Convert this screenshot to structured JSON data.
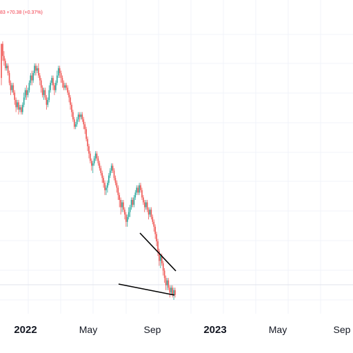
{
  "header": {
    "change_text": "83  +70.38 (+0.37%)"
  },
  "colors": {
    "up": "#26a69a",
    "down": "#ef5350",
    "grid": "#f0f3fa",
    "trendline": "#000000",
    "axis_text": "#131722",
    "price_line": "#e0e3eb"
  },
  "time_axis": {
    "ticks": [
      {
        "label": "2022",
        "kind": "year"
      },
      {
        "label": "May",
        "kind": "month"
      },
      {
        "label": "Sep",
        "kind": "month"
      },
      {
        "label": "2023",
        "kind": "year"
      },
      {
        "label": "May",
        "kind": "month"
      },
      {
        "label": "Sep",
        "kind": "month"
      }
    ]
  },
  "chart_data": {
    "type": "candlestick",
    "x_axis_ticks": [
      "2022",
      "May",
      "Sep",
      "2023",
      "May",
      "Sep"
    ],
    "series": [
      {
        "name": "",
        "values": [
          [
            0.37,
            0.23,
            0.2,
            0.37
          ],
          [
            0.37,
            0.32,
            0.3,
            0.38
          ],
          [
            0.32,
            0.3,
            0.28,
            0.34
          ],
          [
            0.3,
            0.27,
            0.26,
            0.31
          ],
          [
            0.27,
            0.28,
            0.26,
            0.29
          ],
          [
            0.28,
            0.25,
            0.24,
            0.29
          ],
          [
            0.25,
            0.21,
            0.2,
            0.26
          ],
          [
            0.21,
            0.18,
            0.16,
            0.22
          ],
          [
            0.18,
            0.2,
            0.17,
            0.21
          ],
          [
            0.2,
            0.17,
            0.16,
            0.21
          ],
          [
            0.17,
            0.14,
            0.12,
            0.18
          ],
          [
            0.14,
            0.11,
            0.09,
            0.15
          ],
          [
            0.11,
            0.13,
            0.1,
            0.14
          ],
          [
            0.13,
            0.1,
            0.08,
            0.14
          ],
          [
            0.1,
            0.11,
            0.09,
            0.12
          ],
          [
            0.11,
            0.09,
            0.08,
            0.12
          ],
          [
            0.09,
            0.12,
            0.08,
            0.13
          ],
          [
            0.12,
            0.15,
            0.11,
            0.17
          ],
          [
            0.15,
            0.18,
            0.14,
            0.19
          ],
          [
            0.18,
            0.16,
            0.14,
            0.2
          ],
          [
            0.16,
            0.18,
            0.15,
            0.19
          ],
          [
            0.18,
            0.21,
            0.17,
            0.22
          ],
          [
            0.21,
            0.24,
            0.2,
            0.25
          ],
          [
            0.24,
            0.22,
            0.2,
            0.26
          ],
          [
            0.22,
            0.25,
            0.21,
            0.26
          ],
          [
            0.25,
            0.28,
            0.24,
            0.29
          ],
          [
            0.28,
            0.26,
            0.24,
            0.29
          ],
          [
            0.26,
            0.27,
            0.25,
            0.28
          ],
          [
            0.27,
            0.24,
            0.23,
            0.29
          ],
          [
            0.24,
            0.22,
            0.2,
            0.25
          ],
          [
            0.22,
            0.19,
            0.17,
            0.23
          ],
          [
            0.19,
            0.16,
            0.15,
            0.2
          ],
          [
            0.16,
            0.18,
            0.14,
            0.19
          ],
          [
            0.18,
            0.15,
            0.14,
            0.19
          ],
          [
            0.15,
            0.12,
            0.1,
            0.16
          ],
          [
            0.12,
            0.14,
            0.11,
            0.15
          ],
          [
            0.14,
            0.18,
            0.13,
            0.2
          ],
          [
            0.18,
            0.21,
            0.17,
            0.22
          ],
          [
            0.21,
            0.23,
            0.2,
            0.24
          ],
          [
            0.23,
            0.2,
            0.18,
            0.24
          ],
          [
            0.2,
            0.18,
            0.16,
            0.21
          ],
          [
            0.18,
            0.21,
            0.17,
            0.22
          ],
          [
            0.21,
            0.24,
            0.2,
            0.26
          ],
          [
            0.24,
            0.27,
            0.23,
            0.28
          ],
          [
            0.27,
            0.25,
            0.23,
            0.28
          ],
          [
            0.25,
            0.23,
            0.21,
            0.26
          ],
          [
            0.23,
            0.21,
            0.19,
            0.24
          ],
          [
            0.21,
            0.19,
            0.18,
            0.22
          ],
          [
            0.19,
            0.2,
            0.18,
            0.21
          ],
          [
            0.2,
            0.19,
            0.18,
            0.21
          ],
          [
            0.19,
            0.17,
            0.16,
            0.2
          ],
          [
            0.17,
            0.15,
            0.13,
            0.18
          ],
          [
            0.15,
            0.12,
            0.1,
            0.16
          ],
          [
            0.12,
            0.09,
            0.07,
            0.13
          ],
          [
            0.09,
            0.06,
            0.05,
            0.1
          ],
          [
            0.06,
            0.03,
            0.02,
            0.07
          ],
          [
            0.03,
            0.04,
            0.02,
            0.05
          ],
          [
            0.04,
            0.06,
            0.03,
            0.07
          ],
          [
            0.06,
            0.08,
            0.05,
            0.09
          ],
          [
            0.08,
            0.07,
            0.05,
            0.09
          ],
          [
            0.07,
            0.08,
            0.06,
            0.09
          ],
          [
            0.08,
            0.06,
            0.05,
            0.09
          ],
          [
            0.06,
            0.04,
            0.02,
            0.07
          ],
          [
            0.04,
            0.02,
            0.0,
            0.05
          ],
          [
            0.02,
            -0.02,
            -0.03,
            0.03
          ],
          [
            -0.02,
            -0.05,
            -0.07,
            -0.01
          ],
          [
            -0.05,
            -0.08,
            -0.1,
            -0.04
          ],
          [
            -0.08,
            -0.11,
            -0.12,
            -0.07
          ],
          [
            -0.11,
            -0.13,
            -0.15,
            -0.1
          ],
          [
            -0.13,
            -0.12,
            -0.16,
            -0.11
          ],
          [
            -0.12,
            -0.1,
            -0.13,
            -0.09
          ],
          [
            -0.1,
            -0.08,
            -0.11,
            -0.07
          ],
          [
            -0.08,
            -0.1,
            -0.11,
            -0.07
          ],
          [
            -0.1,
            -0.12,
            -0.13,
            -0.09
          ],
          [
            -0.12,
            -0.14,
            -0.15,
            -0.11
          ],
          [
            -0.14,
            -0.16,
            -0.17,
            -0.13
          ],
          [
            -0.16,
            -0.18,
            -0.2,
            -0.15
          ],
          [
            -0.18,
            -0.2,
            -0.22,
            -0.17
          ],
          [
            -0.2,
            -0.23,
            -0.25,
            -0.19
          ],
          [
            -0.23,
            -0.22,
            -0.25,
            -0.21
          ],
          [
            -0.22,
            -0.2,
            -0.24,
            -0.19
          ],
          [
            -0.2,
            -0.17,
            -0.21,
            -0.16
          ],
          [
            -0.17,
            -0.15,
            -0.18,
            -0.14
          ],
          [
            -0.15,
            -0.13,
            -0.16,
            -0.12
          ],
          [
            -0.13,
            -0.15,
            -0.16,
            -0.12
          ],
          [
            -0.15,
            -0.18,
            -0.19,
            -0.14
          ],
          [
            -0.18,
            -0.2,
            -0.21,
            -0.17
          ],
          [
            -0.2,
            -0.22,
            -0.24,
            -0.19
          ],
          [
            -0.22,
            -0.25,
            -0.27,
            -0.21
          ],
          [
            -0.25,
            -0.27,
            -0.3,
            -0.24
          ],
          [
            -0.27,
            -0.3,
            -0.33,
            -0.26
          ],
          [
            -0.3,
            -0.28,
            -0.32,
            -0.27
          ],
          [
            -0.28,
            -0.31,
            -0.32,
            -0.27
          ],
          [
            -0.31,
            -0.33,
            -0.35,
            -0.3
          ],
          [
            -0.33,
            -0.36,
            -0.38,
            -0.32
          ],
          [
            -0.36,
            -0.34,
            -0.38,
            -0.33
          ],
          [
            -0.34,
            -0.32,
            -0.35,
            -0.3
          ],
          [
            -0.32,
            -0.3,
            -0.34,
            -0.29
          ],
          [
            -0.3,
            -0.27,
            -0.31,
            -0.26
          ],
          [
            -0.27,
            -0.29,
            -0.3,
            -0.26
          ],
          [
            -0.29,
            -0.26,
            -0.3,
            -0.25
          ],
          [
            -0.26,
            -0.24,
            -0.27,
            -0.23
          ],
          [
            -0.24,
            -0.22,
            -0.25,
            -0.21
          ],
          [
            -0.22,
            -0.24,
            -0.25,
            -0.21
          ],
          [
            -0.24,
            -0.21,
            -0.25,
            -0.2
          ],
          [
            -0.21,
            -0.23,
            -0.24,
            -0.2
          ],
          [
            -0.23,
            -0.26,
            -0.27,
            -0.22
          ],
          [
            -0.26,
            -0.28,
            -0.29,
            -0.25
          ],
          [
            -0.28,
            -0.3,
            -0.32,
            -0.27
          ],
          [
            -0.3,
            -0.28,
            -0.31,
            -0.27
          ],
          [
            -0.28,
            -0.31,
            -0.32,
            -0.27
          ],
          [
            -0.31,
            -0.33,
            -0.35,
            -0.3
          ],
          [
            -0.33,
            -0.31,
            -0.34,
            -0.3
          ],
          [
            -0.31,
            -0.34,
            -0.35,
            -0.3
          ],
          [
            -0.34,
            -0.36,
            -0.37,
            -0.33
          ],
          [
            -0.36,
            -0.38,
            -0.4,
            -0.35
          ],
          [
            -0.38,
            -0.41,
            -0.43,
            -0.37
          ],
          [
            -0.41,
            -0.44,
            -0.46,
            -0.4
          ],
          [
            -0.44,
            -0.48,
            -0.5,
            -0.43
          ],
          [
            -0.48,
            -0.52,
            -0.54,
            -0.47
          ],
          [
            -0.52,
            -0.5,
            -0.55,
            -0.49
          ],
          [
            -0.5,
            -0.53,
            -0.54,
            -0.49
          ],
          [
            -0.53,
            -0.56,
            -0.58,
            -0.52
          ],
          [
            -0.56,
            -0.59,
            -0.61,
            -0.55
          ],
          [
            -0.59,
            -0.62,
            -0.64,
            -0.58
          ],
          [
            -0.62,
            -0.6,
            -0.64,
            -0.59
          ],
          [
            -0.6,
            -0.63,
            -0.64,
            -0.59
          ],
          [
            -0.63,
            -0.65,
            -0.67,
            -0.62
          ],
          [
            -0.65,
            -0.63,
            -0.66,
            -0.62
          ],
          [
            -0.63,
            -0.66,
            -0.67,
            -0.62
          ],
          [
            -0.66,
            -0.64,
            -0.68,
            -0.63
          ],
          [
            -0.64,
            -0.66,
            -0.67,
            -0.63
          ]
        ]
      }
    ],
    "annotations": [
      "descending trendline (upper)",
      "rising support line (lower)"
    ],
    "grid": true,
    "legend": "none"
  }
}
